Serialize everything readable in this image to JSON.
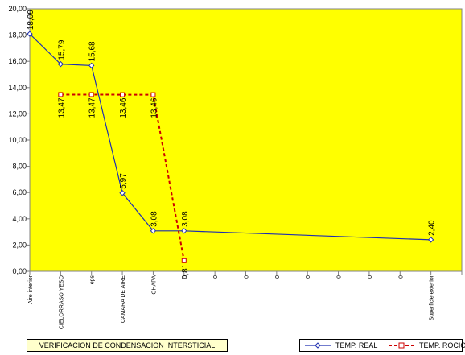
{
  "chart_data": {
    "type": "line",
    "categories": [
      "Aire interior",
      "CIELORRASO YESO",
      "eps",
      "CAMARA DE AIRE",
      "CHAPA",
      "0",
      "0",
      "0",
      "0",
      "0",
      "0",
      "0",
      "0",
      "Superficie exterior"
    ],
    "ylim": [
      0,
      20
    ],
    "y_ticks": [
      "0,00",
      "2,00",
      "4,00",
      "6,00",
      "8,00",
      "10,00",
      "12,00",
      "14,00",
      "16,00",
      "18,00",
      "20,00"
    ],
    "grid": false,
    "plot_background": "#ffff00",
    "series": [
      {
        "name": "TEMP. REAL",
        "color": "#1f2fb0",
        "style": "solid-with-diamonds",
        "points": [
          [
            0,
            18.09
          ],
          [
            1,
            15.79
          ],
          [
            2,
            15.68
          ],
          [
            3,
            5.97
          ],
          [
            4,
            3.08
          ],
          [
            5,
            3.08
          ],
          [
            13,
            2.4
          ]
        ],
        "labels": [
          "18,09",
          "15,79",
          "15,68",
          "5,97",
          "3,08",
          "3,08",
          "2,40"
        ]
      },
      {
        "name": "TEMP. ROCIO",
        "color": "#cc0000",
        "style": "dashed-with-squares",
        "points": [
          [
            1,
            13.47
          ],
          [
            2,
            13.47
          ],
          [
            3,
            13.46
          ],
          [
            4,
            13.46
          ],
          [
            5,
            0.81
          ]
        ],
        "labels": [
          "13,47",
          "13,47",
          "13,46",
          "13,46",
          "0,81"
        ]
      }
    ],
    "caption": "VERIFICACION DE CONDENSACION INTERSTICIAL",
    "legend_placement": "bottom-right"
  }
}
